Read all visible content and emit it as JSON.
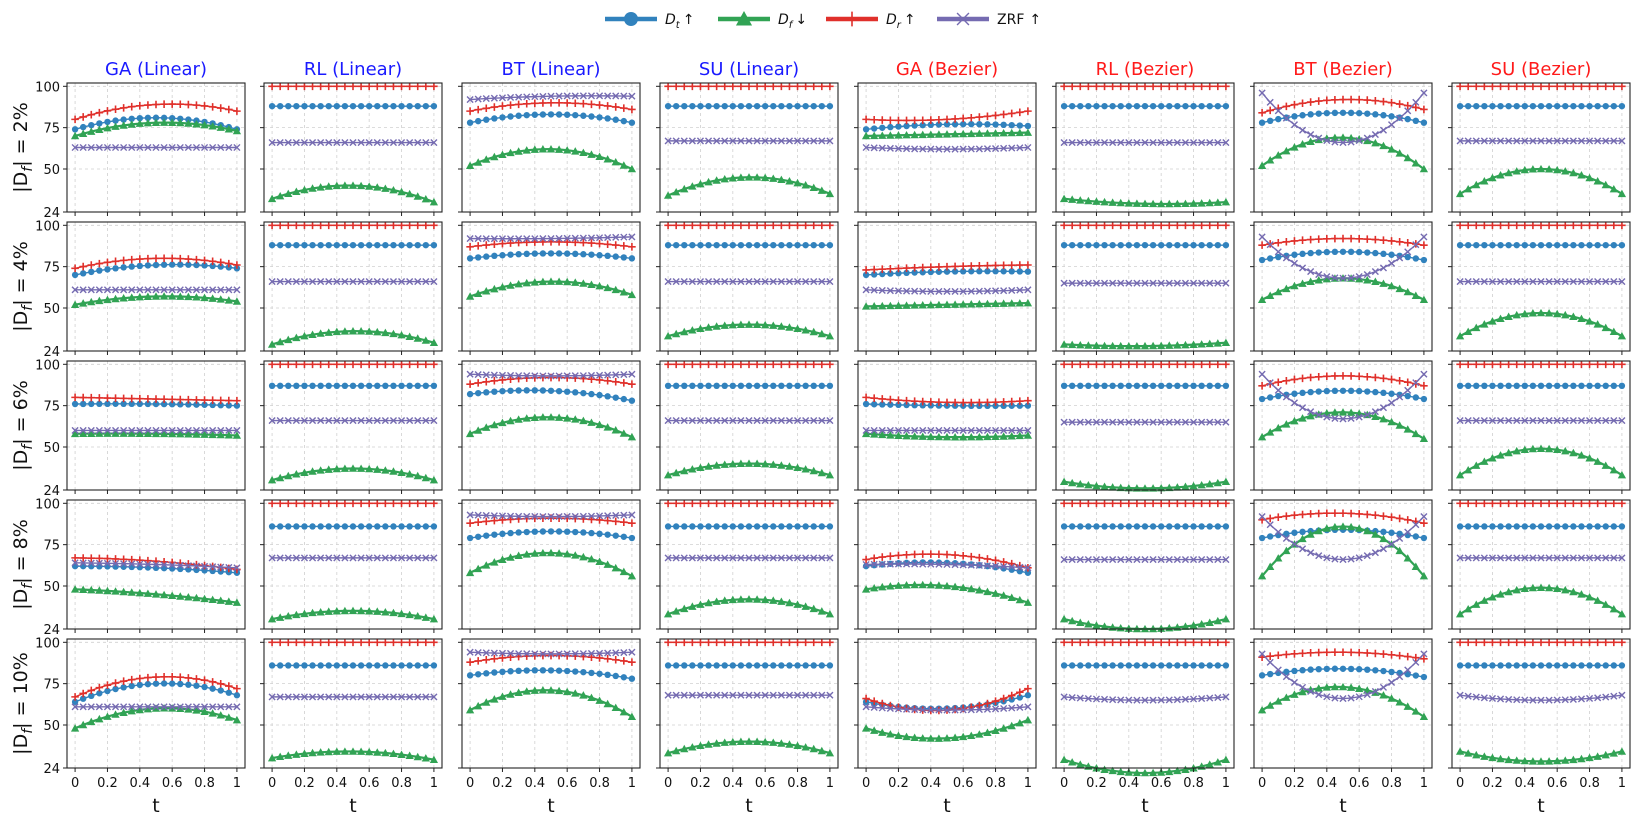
{
  "legend": [
    {
      "key": "dt",
      "label": "D",
      "sub": "t",
      "arrow": "↑",
      "color": "#3182bd",
      "marker": "circle"
    },
    {
      "key": "df",
      "label": "D",
      "sub": "f",
      "arrow": "↓",
      "color": "#31a354",
      "marker": "triangle"
    },
    {
      "key": "dr",
      "label": "D",
      "sub": "r",
      "arrow": "↑",
      "color": "#e0302b",
      "marker": "plus"
    },
    {
      "key": "zrf",
      "label": "ZRF",
      "sub": "",
      "arrow": "↑",
      "color": "#756bb1",
      "marker": "x"
    }
  ],
  "chart_data": {
    "type": "line",
    "columns": [
      {
        "title": "GA (Linear)",
        "color": "#1a1aff"
      },
      {
        "title": "RL (Linear)",
        "color": "#1a1aff"
      },
      {
        "title": "BT (Linear)",
        "color": "#1a1aff"
      },
      {
        "title": "SU (Linear)",
        "color": "#1a1aff"
      },
      {
        "title": "GA (Bezier)",
        "color": "#ff1a1a"
      },
      {
        "title": "RL (Bezier)",
        "color": "#ff1a1a"
      },
      {
        "title": "BT (Bezier)",
        "color": "#ff1a1a"
      },
      {
        "title": "SU (Bezier)",
        "color": "#ff1a1a"
      }
    ],
    "rows": [
      {
        "prefix": "|D",
        "sub": "f",
        "suffix": "| = 2%"
      },
      {
        "prefix": "|D",
        "sub": "f",
        "suffix": "| = 4%"
      },
      {
        "prefix": "|D",
        "sub": "f",
        "suffix": "| = 6%"
      },
      {
        "prefix": "|D",
        "sub": "f",
        "suffix": "| = 8%"
      },
      {
        "prefix": "|D",
        "sub": "f",
        "suffix": "| = 10%"
      }
    ],
    "xlabel": "t",
    "x_ticks": [
      "0",
      "0.2",
      "0.4",
      "0.6",
      "0.8",
      "1"
    ],
    "y_ticks": [
      "24",
      "50",
      "75",
      "100"
    ],
    "xlim": [
      -0.05,
      1.05
    ],
    "ylim": [
      24,
      102
    ],
    "n_points": 21,
    "series_defs": [
      {
        "key": "dt",
        "name": "D_t",
        "color": "#3182bd",
        "marker": "circle"
      },
      {
        "key": "df",
        "name": "D_f",
        "color": "#31a354",
        "marker": "triangle"
      },
      {
        "key": "dr",
        "name": "D_r",
        "color": "#e0302b",
        "marker": "plus"
      },
      {
        "key": "zrf",
        "name": "ZRF",
        "color": "#756bb1",
        "marker": "x"
      }
    ],
    "panels": [
      [
        {
          "dt": [
            74,
            81,
            74
          ],
          "df": [
            70,
            78,
            73
          ],
          "dr": [
            80,
            89,
            85
          ],
          "zrf": [
            63,
            63,
            63
          ]
        },
        {
          "dt": [
            88,
            88,
            88
          ],
          "df": [
            32,
            40,
            30
          ],
          "dr": [
            100,
            100,
            100
          ],
          "zrf": [
            66,
            66,
            66
          ]
        },
        {
          "dt": [
            78,
            83,
            78
          ],
          "df": [
            52,
            62,
            50
          ],
          "dr": [
            85,
            90,
            86
          ],
          "zrf": [
            92,
            94,
            94
          ]
        },
        {
          "dt": [
            88,
            88,
            88
          ],
          "df": [
            34,
            45,
            35
          ],
          "dr": [
            100,
            100,
            100
          ],
          "zrf": [
            67,
            67,
            67
          ]
        },
        {
          "dt": [
            74,
            77,
            76
          ],
          "df": [
            70,
            71,
            72
          ],
          "dr": [
            80,
            80,
            85
          ],
          "zrf": [
            63,
            62,
            63
          ]
        },
        {
          "dt": [
            88,
            88,
            88
          ],
          "df": [
            32,
            29,
            30
          ],
          "dr": [
            100,
            100,
            100
          ],
          "zrf": [
            66,
            66,
            66
          ]
        },
        {
          "dt": [
            78,
            84,
            78
          ],
          "df": [
            52,
            69,
            50
          ],
          "dr": [
            84,
            92,
            86
          ],
          "zrf": [
            96,
            66,
            96
          ]
        },
        {
          "dt": [
            88,
            88,
            88
          ],
          "df": [
            35,
            50,
            35
          ],
          "dr": [
            100,
            100,
            100
          ],
          "zrf": [
            67,
            67,
            67
          ]
        }
      ],
      [
        {
          "dt": [
            70,
            76,
            74
          ],
          "df": [
            52,
            57,
            54
          ],
          "dr": [
            74,
            80,
            76
          ],
          "zrf": [
            61,
            61,
            61
          ]
        },
        {
          "dt": [
            88,
            88,
            88
          ],
          "df": [
            28,
            36,
            29
          ],
          "dr": [
            100,
            100,
            100
          ],
          "zrf": [
            66,
            66,
            66
          ]
        },
        {
          "dt": [
            80,
            83,
            80
          ],
          "df": [
            57,
            66,
            58
          ],
          "dr": [
            87,
            90,
            87
          ],
          "zrf": [
            92,
            92,
            93
          ]
        },
        {
          "dt": [
            88,
            88,
            88
          ],
          "df": [
            33,
            40,
            33
          ],
          "dr": [
            100,
            100,
            100
          ],
          "zrf": [
            66,
            66,
            66
          ]
        },
        {
          "dt": [
            70,
            72,
            72
          ],
          "df": [
            51,
            52,
            53
          ],
          "dr": [
            73,
            75,
            76
          ],
          "zrf": [
            61,
            60,
            61
          ]
        },
        {
          "dt": [
            88,
            88,
            88
          ],
          "df": [
            28,
            27,
            29
          ],
          "dr": [
            100,
            100,
            100
          ],
          "zrf": [
            65,
            65,
            65
          ]
        },
        {
          "dt": [
            79,
            84,
            79
          ],
          "df": [
            55,
            68,
            55
          ],
          "dr": [
            88,
            92,
            88
          ],
          "zrf": [
            93,
            68,
            93
          ]
        },
        {
          "dt": [
            88,
            88,
            88
          ],
          "df": [
            33,
            47,
            33
          ],
          "dr": [
            100,
            100,
            100
          ],
          "zrf": [
            66,
            66,
            66
          ]
        }
      ],
      [
        {
          "dt": [
            76,
            76,
            75
          ],
          "df": [
            58,
            58,
            57
          ],
          "dr": [
            80,
            79,
            78
          ],
          "zrf": [
            60,
            60,
            60
          ]
        },
        {
          "dt": [
            87,
            87,
            87
          ],
          "df": [
            30,
            37,
            30
          ],
          "dr": [
            100,
            100,
            100
          ],
          "zrf": [
            66,
            66,
            66
          ]
        },
        {
          "dt": [
            82,
            84,
            78
          ],
          "df": [
            58,
            68,
            56
          ],
          "dr": [
            88,
            92,
            88
          ],
          "zrf": [
            94,
            93,
            94
          ]
        },
        {
          "dt": [
            87,
            87,
            87
          ],
          "df": [
            33,
            40,
            33
          ],
          "dr": [
            100,
            100,
            100
          ],
          "zrf": [
            66,
            66,
            66
          ]
        },
        {
          "dt": [
            76,
            75,
            75
          ],
          "df": [
            58,
            56,
            57
          ],
          "dr": [
            80,
            77,
            78
          ],
          "zrf": [
            60,
            60,
            60
          ]
        },
        {
          "dt": [
            87,
            87,
            87
          ],
          "df": [
            29,
            25,
            29
          ],
          "dr": [
            100,
            100,
            100
          ],
          "zrf": [
            65,
            65,
            65
          ]
        },
        {
          "dt": [
            79,
            84,
            79
          ],
          "df": [
            56,
            71,
            55
          ],
          "dr": [
            87,
            93,
            87
          ],
          "zrf": [
            94,
            67,
            94
          ]
        },
        {
          "dt": [
            87,
            87,
            87
          ],
          "df": [
            33,
            49,
            33
          ],
          "dr": [
            100,
            100,
            100
          ],
          "zrf": [
            66,
            66,
            66
          ]
        }
      ],
      [
        {
          "dt": [
            62,
            61,
            58
          ],
          "df": [
            48,
            45,
            40
          ],
          "dr": [
            67,
            65,
            60
          ],
          "zrf": [
            64,
            63,
            61
          ]
        },
        {
          "dt": [
            86,
            86,
            86
          ],
          "df": [
            30,
            35,
            30
          ],
          "dr": [
            100,
            100,
            100
          ],
          "zrf": [
            67,
            67,
            67
          ]
        },
        {
          "dt": [
            79,
            83,
            79
          ],
          "df": [
            58,
            70,
            56
          ],
          "dr": [
            88,
            91,
            88
          ],
          "zrf": [
            93,
            92,
            93
          ]
        },
        {
          "dt": [
            86,
            86,
            86
          ],
          "df": [
            33,
            42,
            33
          ],
          "dr": [
            100,
            100,
            100
          ],
          "zrf": [
            67,
            67,
            67
          ]
        },
        {
          "dt": [
            62,
            64,
            58
          ],
          "df": [
            48,
            50,
            40
          ],
          "dr": [
            66,
            69,
            61
          ],
          "zrf": [
            63,
            63,
            61
          ]
        },
        {
          "dt": [
            86,
            86,
            86
          ],
          "df": [
            30,
            24,
            30
          ],
          "dr": [
            100,
            100,
            100
          ],
          "zrf": [
            66,
            66,
            66
          ]
        },
        {
          "dt": [
            79,
            84,
            79
          ],
          "df": [
            56,
            86,
            56
          ],
          "dr": [
            90,
            94,
            88
          ],
          "zrf": [
            92,
            66,
            92
          ]
        },
        {
          "dt": [
            86,
            86,
            86
          ],
          "df": [
            33,
            49,
            33
          ],
          "dr": [
            100,
            100,
            100
          ],
          "zrf": [
            67,
            67,
            67
          ]
        }
      ],
      [
        {
          "dt": [
            64,
            75,
            68
          ],
          "df": [
            48,
            60,
            53
          ],
          "dr": [
            67,
            79,
            72
          ],
          "zrf": [
            61,
            61,
            61
          ]
        },
        {
          "dt": [
            86,
            86,
            86
          ],
          "df": [
            30,
            34,
            29
          ],
          "dr": [
            100,
            100,
            100
          ],
          "zrf": [
            67,
            67,
            67
          ]
        },
        {
          "dt": [
            80,
            83,
            78
          ],
          "df": [
            59,
            71,
            55
          ],
          "dr": [
            88,
            92,
            88
          ],
          "zrf": [
            94,
            93,
            94
          ]
        },
        {
          "dt": [
            86,
            86,
            86
          ],
          "df": [
            33,
            40,
            33
          ],
          "dr": [
            100,
            100,
            100
          ],
          "zrf": [
            68,
            68,
            68
          ]
        },
        {
          "dt": [
            64,
            60,
            68
          ],
          "df": [
            48,
            42,
            53
          ],
          "dr": [
            66,
            59,
            72
          ],
          "zrf": [
            61,
            59,
            61
          ]
        },
        {
          "dt": [
            86,
            86,
            86
          ],
          "df": [
            29,
            21,
            29
          ],
          "dr": [
            100,
            100,
            100
          ],
          "zrf": [
            67,
            65,
            67
          ]
        },
        {
          "dt": [
            80,
            84,
            79
          ],
          "df": [
            59,
            73,
            55
          ],
          "dr": [
            91,
            94,
            90
          ],
          "zrf": [
            93,
            66,
            93
          ]
        },
        {
          "dt": [
            86,
            86,
            86
          ],
          "df": [
            34,
            28,
            34
          ],
          "dr": [
            100,
            100,
            100
          ],
          "zrf": [
            68,
            65,
            68
          ]
        }
      ]
    ]
  }
}
